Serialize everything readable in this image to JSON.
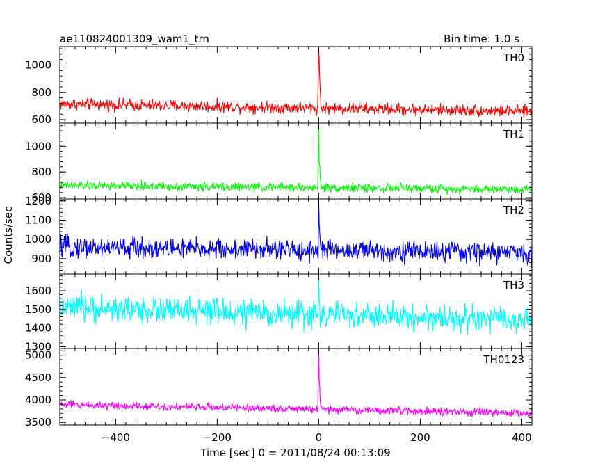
{
  "header": {
    "title": "ae110824001309_wam1_trn",
    "bin_time": "Bin time: 1.0 s"
  },
  "chart_data": {
    "type": "line",
    "title": "ae110824001309_wam1_trn",
    "xlabel": "Time [sec] 0 = 2011/08/24 00:13:09",
    "ylabel": "Counts/sec",
    "xlim": [
      -510,
      420
    ],
    "x_ticks": [
      -400,
      -200,
      0,
      200,
      400
    ],
    "x_tick_labels": [
      "−400",
      "−200",
      "0",
      "200",
      "400"
    ],
    "bin_time_s": 1.0,
    "series": [
      {
        "name": "TH0",
        "color": "#ff0000",
        "ylim": [
          575,
          1135
        ],
        "y_ticks": [
          600,
          800,
          1000
        ],
        "y_tick_labels": [
          "600",
          "800",
          "1000"
        ],
        "baseline_start": 715,
        "baseline_end": 660,
        "noise": 38,
        "burst_peaks": [
          [
            -1,
            860
          ],
          [
            0,
            1135
          ],
          [
            1,
            1040
          ],
          [
            2,
            900
          ],
          [
            3,
            820
          ],
          [
            4,
            740
          ]
        ]
      },
      {
        "name": "TH1",
        "color": "#00ff00",
        "ylim": [
          590,
          1180
        ],
        "y_ticks": [
          600,
          800,
          1000
        ],
        "y_tick_labels": [
          "600",
          "800",
          "1000"
        ],
        "baseline_start": 695,
        "baseline_end": 665,
        "noise": 30,
        "burst_peaks": [
          [
            -1,
            800
          ],
          [
            0,
            1180
          ],
          [
            1,
            880
          ],
          [
            2,
            850
          ],
          [
            3,
            760
          ],
          [
            4,
            720
          ]
        ]
      },
      {
        "name": "TH2",
        "color": "#0000ff",
        "ylim": [
          820,
          1210
        ],
        "y_ticks": [
          900,
          1000,
          1100,
          1200
        ],
        "y_tick_labels": [
          "900",
          "1000",
          "1100",
          "1200"
        ],
        "baseline_start": 960,
        "baseline_end": 930,
        "noise": 48,
        "burst_peaks": [
          [
            0,
            1210
          ],
          [
            1,
            1080
          ],
          [
            2,
            1040
          ],
          [
            3,
            990
          ]
        ]
      },
      {
        "name": "TH3",
        "color": "#00ffff",
        "ylim": [
          1290,
          1690
        ],
        "y_ticks": [
          1300,
          1400,
          1500,
          1600
        ],
        "y_tick_labels": [
          "1300",
          "1400",
          "1500",
          "1600"
        ],
        "baseline_start": 1510,
        "baseline_end": 1440,
        "noise": 62,
        "burst_peaks": [
          [
            0,
            1680
          ],
          [
            1,
            1560
          ],
          [
            2,
            1520
          ]
        ]
      },
      {
        "name": "TH0123",
        "color": "#ff00ff",
        "ylim": [
          3440,
          5150
        ],
        "y_ticks": [
          3500,
          4000,
          4500,
          5000
        ],
        "y_tick_labels": [
          "3500",
          "4000",
          "4500",
          "5000"
        ],
        "baseline_start": 3900,
        "baseline_end": 3700,
        "noise": 75,
        "burst_peaks": [
          [
            -1,
            4200
          ],
          [
            0,
            5150
          ],
          [
            1,
            4450
          ],
          [
            2,
            4300
          ],
          [
            3,
            3950
          ],
          [
            4,
            3850
          ]
        ]
      }
    ]
  }
}
